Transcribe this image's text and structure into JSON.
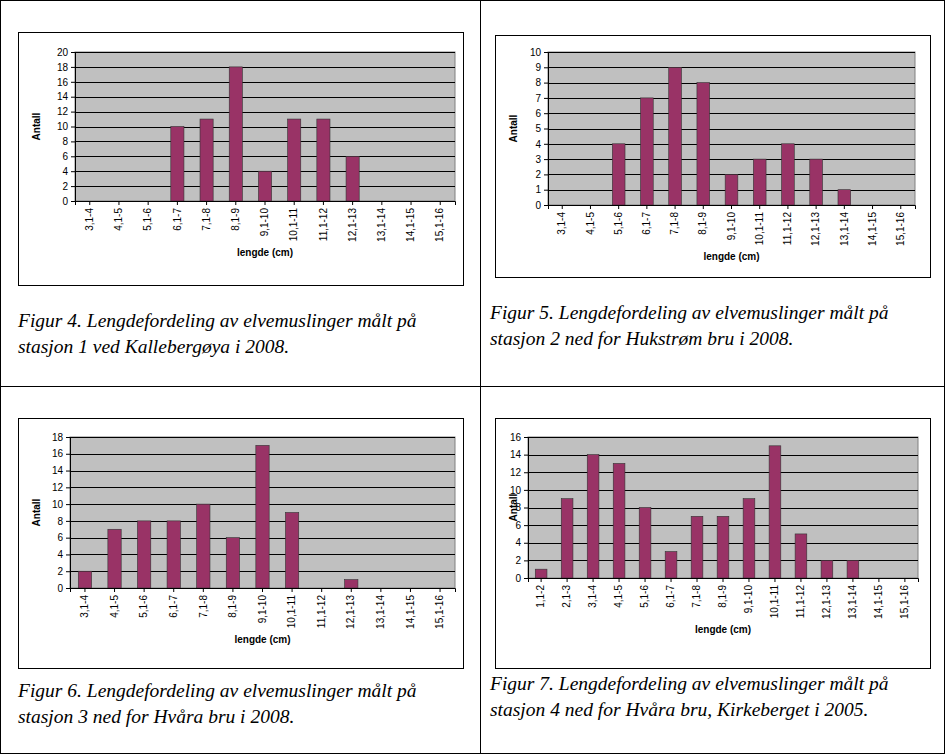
{
  "chart_data": [
    {
      "type": "bar",
      "title": "Figur 4. Lengdefordeling av elvemuslinger målt på stasjon 1 ved Kallebergøya i 2008.",
      "xlabel": "lengde (cm)",
      "ylabel": "Antall",
      "categories": [
        "3,1-4",
        "4,1-5",
        "5,1-6",
        "6,1-7",
        "7,1-8",
        "8,1-9",
        "9,1-10",
        "10,1-11",
        "11,1-12",
        "12,1-13",
        "13,1-14",
        "14,1-15",
        "15,1-16"
      ],
      "values": [
        0,
        0,
        0,
        10,
        11,
        18,
        4,
        11,
        11,
        6,
        0,
        0,
        0
      ],
      "color": "#993366",
      "ylim": [
        0,
        20
      ],
      "yticks": [
        0,
        2,
        4,
        6,
        8,
        10,
        12,
        14,
        16,
        18,
        20
      ],
      "grid": true
    },
    {
      "type": "bar",
      "title": "Figur 5. Lengdefordeling av elvemuslinger målt på stasjon 2 ned for Hukstrøm bru i 2008.",
      "xlabel": "lengde (cm)",
      "ylabel": "Antall",
      "categories": [
        "3,1-4",
        "4,1-5",
        "5,1-6",
        "6,1-7",
        "7,1-8",
        "8,1-9",
        "9,1-10",
        "10,1-11",
        "11,1-12",
        "12,1-13",
        "13,1-14",
        "14,1-15",
        "15,1-16"
      ],
      "values": [
        0,
        0,
        4,
        7,
        9,
        8,
        2,
        3,
        4,
        3,
        1,
        0,
        0
      ],
      "color": "#993366",
      "ylim": [
        0,
        10
      ],
      "yticks": [
        0,
        1,
        2,
        3,
        4,
        5,
        6,
        7,
        8,
        9,
        10
      ],
      "grid": true
    },
    {
      "type": "bar",
      "title": "Figur 6. Lengdefordeling av elvemuslinger målt på stasjon 3 ned for Hvåra bru i 2008.",
      "xlabel": "lengde (cm)",
      "ylabel": "Antall",
      "categories": [
        "3,1-4",
        "4,1-5",
        "5,1-6",
        "6,1-7",
        "7,1-8",
        "8,1-9",
        "9,1-10",
        "10,1-11",
        "11,1-12",
        "12,1-13",
        "13,1-14",
        "14,1-15",
        "15,1-16"
      ],
      "values": [
        2,
        7,
        8,
        8,
        10,
        6,
        17,
        9,
        0,
        1,
        0,
        0,
        0
      ],
      "color": "#993366",
      "ylim": [
        0,
        18
      ],
      "yticks": [
        0,
        2,
        4,
        6,
        8,
        10,
        12,
        14,
        16,
        18
      ],
      "grid": true
    },
    {
      "type": "bar",
      "title": "Figur 7. Lengdefordeling av elvemuslinger målt på stasjon 4 ned for Hvåra bru, Kirkeberget i 2005.",
      "xlabel": "lengde (cm)",
      "ylabel": "Antall",
      "categories": [
        "1,1-2",
        "2,1-3",
        "3,1-4",
        "4,1-5",
        "5,1-6",
        "6,1-7",
        "7,1-8",
        "8,1-9",
        "9,1-10",
        "10,1-11",
        "11,1-12",
        "12,1-13",
        "13,1-14",
        "14,1-15",
        "15,1-16"
      ],
      "values": [
        1,
        9,
        14,
        13,
        8,
        3,
        7,
        7,
        9,
        15,
        5,
        2,
        2,
        0,
        0
      ],
      "color": "#993366",
      "ylim": [
        0,
        16
      ],
      "yticks": [
        0,
        2,
        4,
        6,
        8,
        10,
        12,
        14,
        16
      ],
      "grid": true
    }
  ]
}
